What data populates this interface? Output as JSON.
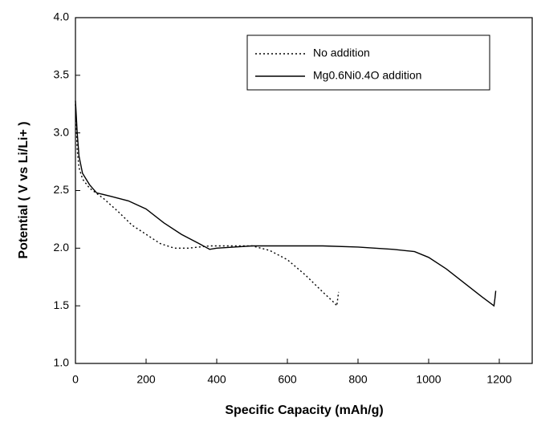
{
  "chart_data": {
    "type": "line",
    "xlabel": "Specific Capacity (mAh/g)",
    "ylabel": "Potential ( V vs Li/Li+ )",
    "xlim": [
      0,
      1300
    ],
    "ylim": [
      1,
      4
    ],
    "xticks": [
      0,
      200,
      400,
      600,
      800,
      1000,
      1200
    ],
    "yticks": [
      {
        "value": 1,
        "label": "1.0"
      },
      1.5,
      {
        "value": 2,
        "label": "2.0"
      },
      2.5,
      {
        "value": 3,
        "label": "3.0"
      },
      3.5,
      {
        "value": 4,
        "label": "4.0"
      }
    ],
    "legend": "upper right",
    "series": [
      {
        "name": "No addition",
        "color": "#000000",
        "dash": "dotted",
        "x": [
          0,
          5,
          10,
          20,
          40,
          80,
          120,
          160,
          200,
          240,
          280,
          320,
          380,
          450,
          500,
          550,
          600,
          650,
          700,
          735,
          740,
          742,
          745
        ],
        "values": [
          3.25,
          2.85,
          2.7,
          2.6,
          2.52,
          2.43,
          2.32,
          2.2,
          2.12,
          2.04,
          2.0,
          2.0,
          2.02,
          2.02,
          2.02,
          1.98,
          1.9,
          1.77,
          1.62,
          1.52,
          1.5,
          1.55,
          1.62
        ]
      },
      {
        "name": "Mg0.6Ni0.4O addition",
        "color": "#000000",
        "dash": "solid",
        "x": [
          0,
          5,
          10,
          20,
          40,
          60,
          100,
          150,
          200,
          250,
          300,
          350,
          380,
          400,
          450,
          500,
          600,
          700,
          800,
          900,
          960,
          1000,
          1050,
          1100,
          1150,
          1185,
          1188,
          1190
        ],
        "values": [
          3.28,
          3.0,
          2.8,
          2.65,
          2.55,
          2.48,
          2.45,
          2.41,
          2.34,
          2.22,
          2.12,
          2.04,
          1.99,
          2.0,
          2.01,
          2.02,
          2.02,
          2.02,
          2.01,
          1.99,
          1.97,
          1.92,
          1.82,
          1.7,
          1.58,
          1.5,
          1.57,
          1.63
        ]
      }
    ]
  }
}
